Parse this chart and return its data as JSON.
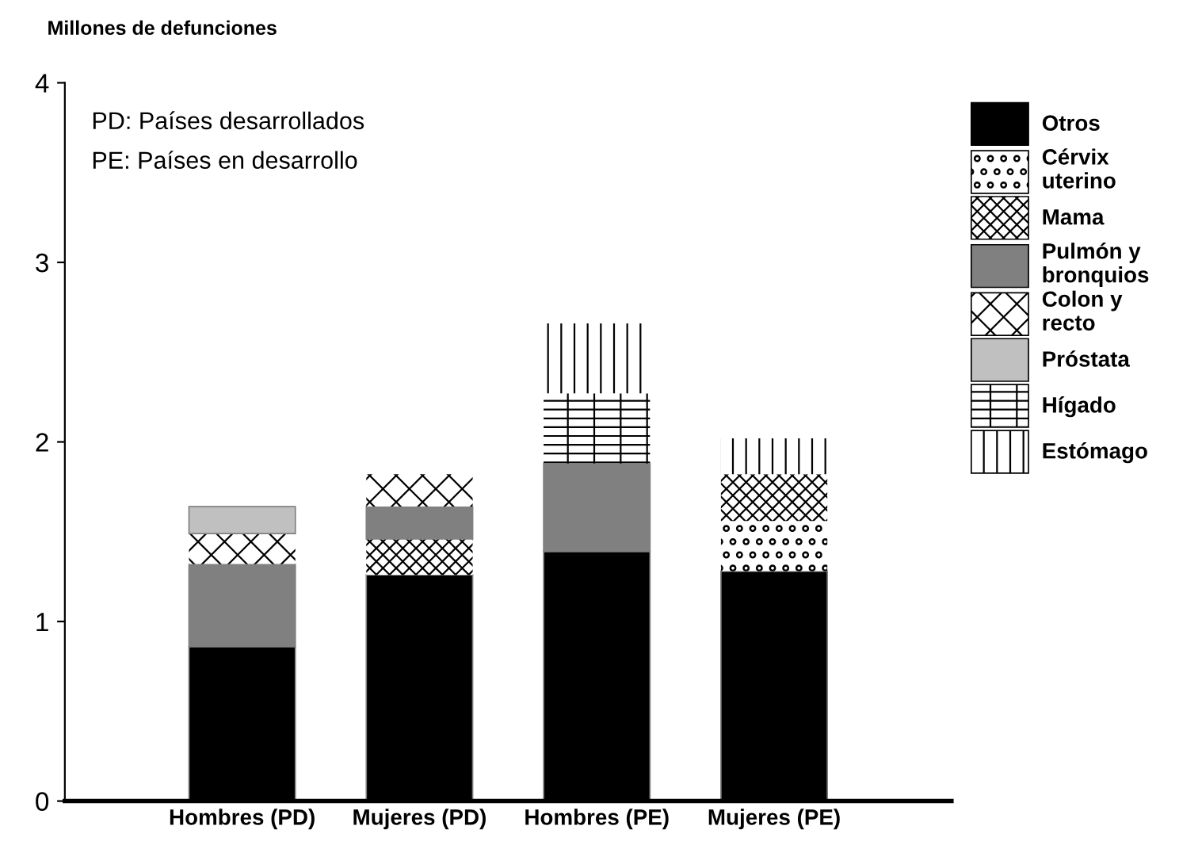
{
  "chart_data": {
    "type": "bar",
    "stacked": true,
    "ylabel": "Millones de defunciones",
    "categories": [
      "Hombres (PD)",
      "Mujeres (PD)",
      "Hombres (PE)",
      "Mujeres (PE)"
    ],
    "series": [
      {
        "name": "Otros",
        "color": "#000000",
        "values": [
          0.86,
          1.26,
          1.39,
          1.28
        ]
      },
      {
        "name": "Cérvix\nuterino",
        "color": "#ffffff",
        "values": [
          null,
          null,
          null,
          0.28
        ]
      },
      {
        "name": "Mama",
        "color": "#ffffff",
        "values": [
          null,
          0.2,
          null,
          0.26
        ]
      },
      {
        "name": "Pulmón y\nbronquios",
        "color": "#808080",
        "values": [
          0.46,
          0.18,
          0.49,
          null
        ]
      },
      {
        "name": "Colon y\nrecto",
        "color": "#ffffff",
        "values": [
          0.17,
          0.18,
          null,
          null
        ]
      },
      {
        "name": "Próstata",
        "color": "#c0c0c0",
        "values": [
          0.15,
          null,
          null,
          null
        ]
      },
      {
        "name": "Hígado",
        "color": "#ffffff",
        "values": [
          null,
          null,
          0.39,
          null
        ]
      },
      {
        "name": "Estómago",
        "color": "#ffffff",
        "values": [
          null,
          null,
          0.39,
          0.2
        ]
      }
    ],
    "ylim": [
      0,
      4
    ],
    "yticks": [
      0,
      1,
      2,
      3,
      4
    ],
    "grid": false,
    "legend": "right",
    "annotations": [
      "PD: Países desarrollados",
      "PE: Países en desarrollo"
    ]
  }
}
